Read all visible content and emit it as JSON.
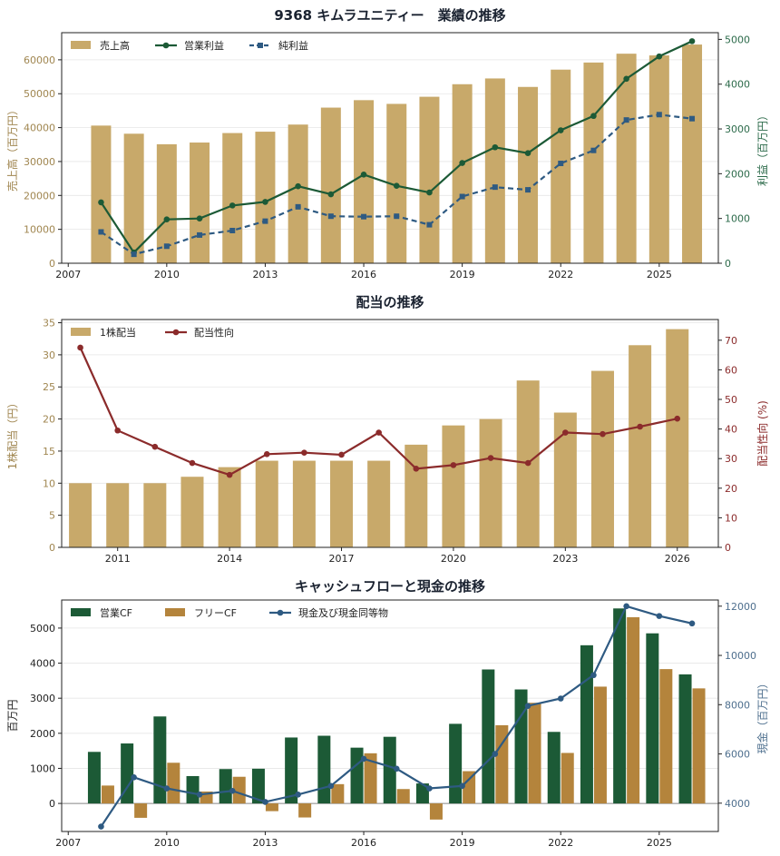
{
  "colors": {
    "sales": "#c8a96a",
    "op_profit": "#1c5a36",
    "net_profit": "#2e5a82",
    "dividend": "#c8a96a",
    "payout": "#8b2b2b",
    "op_cf": "#1c5a36",
    "free_cf": "#b4843c",
    "cash": "#2e5a82",
    "title": "#1a2230",
    "grid": "#e6e6e6"
  },
  "chart_data": [
    {
      "type": "bar",
      "title": "9368 キムラユニティー　業績の推移",
      "ylabel_left": "売上高（百万円）",
      "ylabel_right": "利益（百万円）",
      "xlim": [
        2006.8,
        2026.8
      ],
      "xticks": [
        2007,
        2010,
        2013,
        2016,
        2019,
        2022,
        2025
      ],
      "ylim_left": [
        0,
        68000
      ],
      "yticks_left": [
        0,
        10000,
        20000,
        30000,
        40000,
        50000,
        60000
      ],
      "ylim_right": [
        0,
        5150
      ],
      "yticks_right": [
        0,
        1000,
        2000,
        3000,
        4000,
        5000
      ],
      "grid": true,
      "legend_position": "top-left",
      "x": [
        2008,
        2009,
        2010,
        2011,
        2012,
        2013,
        2014,
        2015,
        2016,
        2017,
        2018,
        2019,
        2020,
        2021,
        2022,
        2023,
        2024,
        2025,
        2026
      ],
      "series": [
        {
          "name": "売上高",
          "kind": "bar",
          "axis": "left",
          "values": [
            40600,
            38200,
            35100,
            35600,
            38400,
            38800,
            40900,
            45900,
            48100,
            47000,
            49100,
            52800,
            54500,
            52000,
            57100,
            59200,
            61800,
            61300,
            64500
          ]
        },
        {
          "name": "営業利益",
          "kind": "line",
          "axis": "right",
          "values": [
            1360,
            240,
            980,
            1000,
            1290,
            1370,
            1720,
            1540,
            1980,
            1730,
            1580,
            2240,
            2590,
            2460,
            2970,
            3290,
            4120,
            4620,
            4960
          ]
        },
        {
          "name": "純利益",
          "kind": "line",
          "dashed": true,
          "axis": "right",
          "values": [
            700,
            200,
            380,
            630,
            730,
            940,
            1260,
            1050,
            1040,
            1050,
            860,
            1490,
            1700,
            1640,
            2230,
            2520,
            3200,
            3320,
            3230
          ]
        }
      ]
    },
    {
      "type": "bar",
      "title": "配当の推移",
      "ylabel_left": "1株配当（円）",
      "ylabel_right": "配当性向 (%)",
      "xlim": [
        2009.5,
        2027.1
      ],
      "xticks": [
        2011,
        2014,
        2017,
        2020,
        2023,
        2026
      ],
      "ylim_left": [
        0,
        35.5
      ],
      "yticks_left": [
        0,
        5,
        10,
        15,
        20,
        25,
        30,
        35
      ],
      "ylim_right": [
        0,
        77
      ],
      "yticks_right": [
        0,
        10,
        20,
        30,
        40,
        50,
        60,
        70
      ],
      "grid": true,
      "legend_position": "top-left",
      "x": [
        2010,
        2011,
        2012,
        2013,
        2014,
        2015,
        2016,
        2017,
        2018,
        2019,
        2020,
        2021,
        2022,
        2023,
        2024,
        2025,
        2026
      ],
      "series": [
        {
          "name": "1株配当",
          "kind": "bar",
          "axis": "left",
          "values": [
            10,
            10,
            10,
            11,
            12.5,
            13.5,
            13.5,
            13.5,
            13.5,
            16,
            19,
            20,
            26,
            21,
            27.5,
            31.5,
            34
          ]
        },
        {
          "name": "配当性向",
          "kind": "line",
          "axis": "right",
          "values": [
            67.5,
            39.5,
            34,
            28.5,
            24.5,
            31.5,
            32,
            31.3,
            38.8,
            26.6,
            27.8,
            30.2,
            28.5,
            38.8,
            38.3,
            40.8,
            43.5
          ]
        }
      ]
    },
    {
      "type": "bar",
      "title": "キャッシュフローと現金の推移",
      "ylabel_left": "百万円",
      "ylabel_right": "現金（百万円）",
      "xlim": [
        2006.8,
        2026.8
      ],
      "xticks": [
        2007,
        2010,
        2013,
        2016,
        2019,
        2022,
        2025
      ],
      "ylim_left": [
        -800,
        5800
      ],
      "yticks_left": [
        0,
        1000,
        2000,
        3000,
        4000,
        5000
      ],
      "ylim_right": [
        2850,
        12250
      ],
      "yticks_right": [
        4000,
        6000,
        8000,
        10000,
        12000
      ],
      "grid": true,
      "legend_position": "top-left",
      "x": [
        2008,
        2009,
        2010,
        2011,
        2012,
        2013,
        2014,
        2015,
        2016,
        2017,
        2018,
        2019,
        2020,
        2021,
        2022,
        2023,
        2024,
        2025,
        2026
      ],
      "series": [
        {
          "name": "営業CF",
          "kind": "bar",
          "axis": "left",
          "values": [
            1470,
            1710,
            2480,
            780,
            980,
            990,
            1880,
            1930,
            1590,
            1900,
            570,
            2270,
            3820,
            3250,
            2040,
            4510,
            5560,
            4850,
            3680
          ]
        },
        {
          "name": "フリーCF",
          "kind": "bar",
          "axis": "left",
          "values": [
            510,
            -410,
            1160,
            340,
            760,
            -220,
            -400,
            550,
            1430,
            410,
            -460,
            920,
            2230,
            2870,
            1440,
            3330,
            5310,
            3830,
            3280
          ]
        },
        {
          "name": "現金及び現金同等物",
          "kind": "line",
          "axis": "right",
          "values": [
            3050,
            5050,
            4600,
            4350,
            4500,
            4050,
            4350,
            4700,
            5800,
            5400,
            4600,
            4700,
            6000,
            7950,
            8250,
            9200,
            12000,
            11600,
            11300
          ]
        }
      ]
    }
  ]
}
